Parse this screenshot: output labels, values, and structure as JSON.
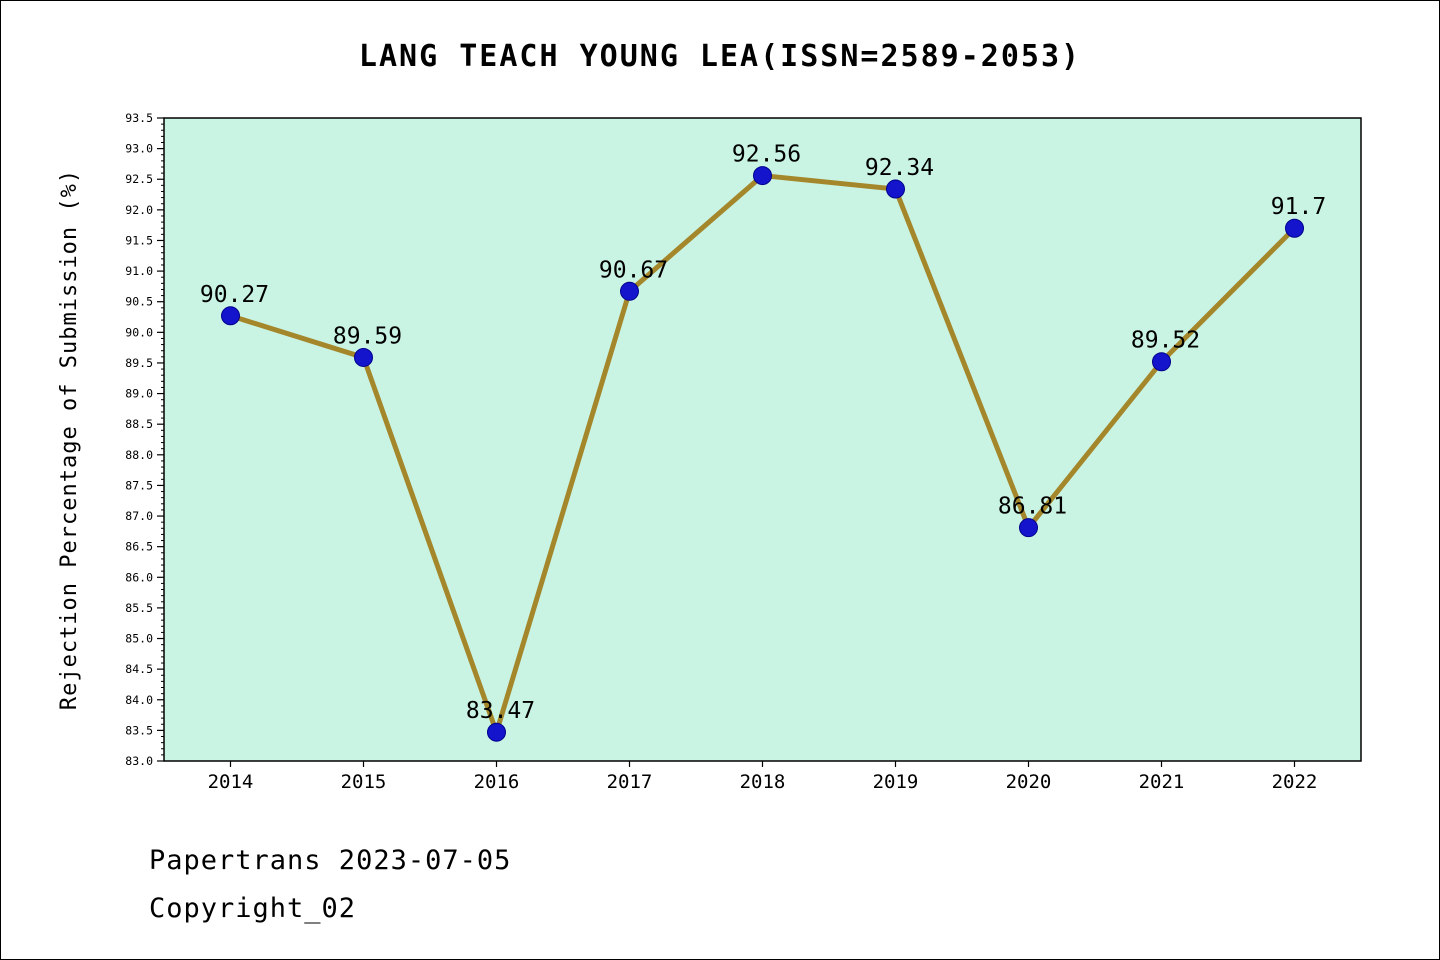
{
  "title": "LANG TEACH YOUNG LEA(ISSN=2589-2053)",
  "footer": {
    "line1": "Papertrans 2023-07-05",
    "line2": "Copyright_02"
  },
  "chart_data": {
    "type": "line",
    "title": "LANG TEACH YOUNG LEA(ISSN=2589-2053)",
    "categories": [
      "2014",
      "2015",
      "2016",
      "2017",
      "2018",
      "2019",
      "2020",
      "2021",
      "2022"
    ],
    "values": [
      90.27,
      89.59,
      83.47,
      90.67,
      92.56,
      92.34,
      86.81,
      89.52,
      91.7
    ],
    "point_labels": [
      "90.27",
      "89.59",
      "83.47",
      "90.67",
      "92.56",
      "92.34",
      "86.81",
      "89.52",
      "91.7"
    ],
    "xlabel": "",
    "ylabel": "Rejection Percentage of Submission (%)",
    "ylim": [
      83.0,
      93.5
    ],
    "ytick_major_step": 0.5,
    "ytick_minor_step": 0.1,
    "grid": false,
    "legend": "none",
    "colors": {
      "plot_bg": "#c9f4e4",
      "line": "#a5872b",
      "marker": "#1414cc",
      "axis": "#000000",
      "text": "#000000"
    }
  }
}
